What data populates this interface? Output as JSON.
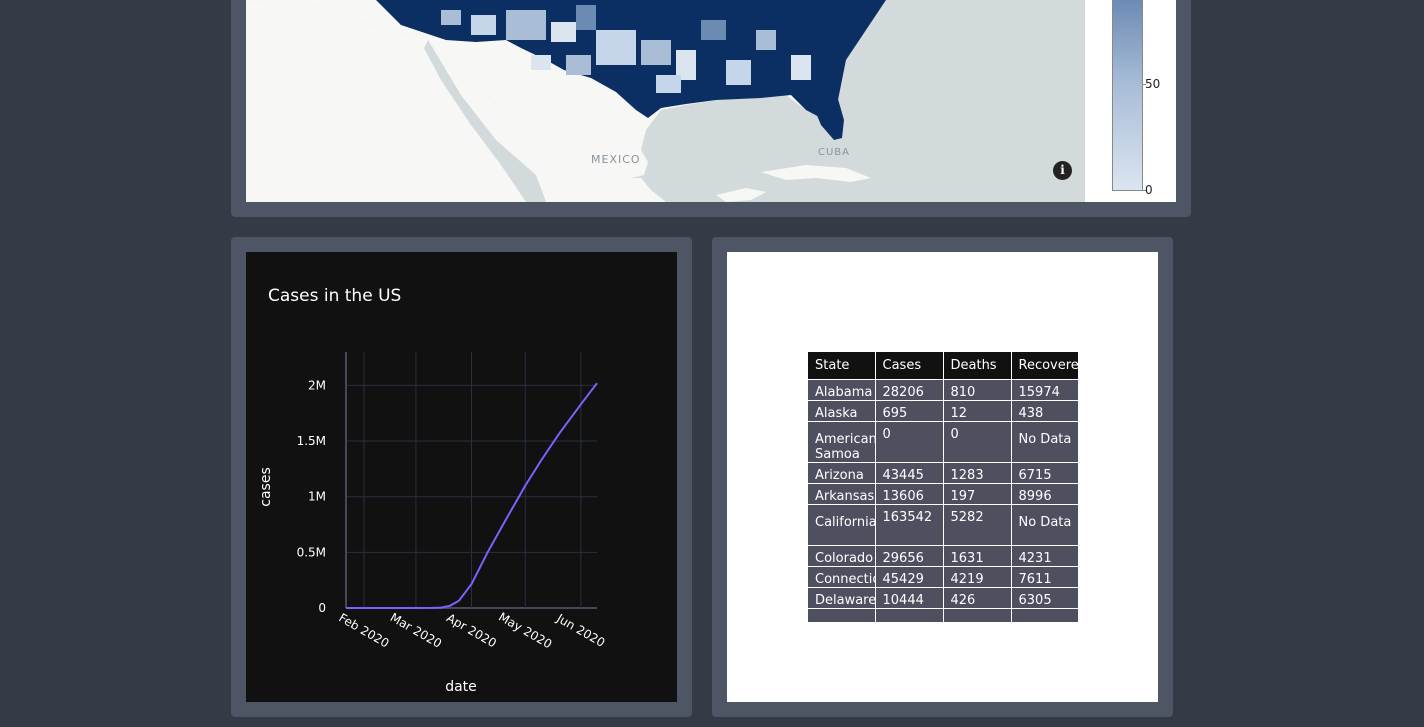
{
  "map": {
    "labels": {
      "mexico": "MEXICO",
      "cuba": "CUBA"
    },
    "info_icon": "info-icon",
    "colorbar": {
      "ticks": [
        "50",
        "0"
      ],
      "low_color": "#dbe5f0",
      "high_color": "#08306b"
    },
    "land_color": "#f7f7f5",
    "water_color": "#d3dadc"
  },
  "chart_data": {
    "type": "line",
    "title": "Cases in the US",
    "xlabel": "date",
    "ylabel": "cases",
    "x_ticks": [
      "Feb 2020",
      "Mar 2020",
      "Apr 2020",
      "May 2020",
      "Jun 2020"
    ],
    "y_ticks": [
      "0",
      "0.5M",
      "1M",
      "1.5M",
      "2M"
    ],
    "ylim": [
      0,
      2300000
    ],
    "grid": true,
    "line_color": "#7b61ff",
    "background": "#111111",
    "series": [
      {
        "x": [
          "2020-01-22",
          "2020-02-15",
          "2020-03-01",
          "2020-03-10",
          "2020-03-15",
          "2020-03-20",
          "2020-03-25",
          "2020-04-01",
          "2020-04-10",
          "2020-04-20",
          "2020-05-01",
          "2020-05-10",
          "2020-05-20",
          "2020-06-01",
          "2020-06-10"
        ],
        "y": [
          0,
          15,
          75,
          1000,
          3500,
          20000,
          66000,
          215000,
          500000,
          790000,
          1100000,
          1330000,
          1570000,
          1830000,
          2020000
        ]
      }
    ]
  },
  "table": {
    "columns": [
      "State",
      "Cases",
      "Deaths",
      "Recovered"
    ],
    "rows": [
      [
        "Alabama",
        "28206",
        "810",
        "15974"
      ],
      [
        "Alaska",
        "695",
        "12",
        "438"
      ],
      [
        "American Samoa",
        "0",
        "0",
        "No Data"
      ],
      [
        "Arizona",
        "43445",
        "1283",
        "6715"
      ],
      [
        "Arkansas",
        "13606",
        "197",
        "8996"
      ],
      [
        "California",
        "163542",
        "5282",
        "No Data"
      ],
      [
        "Colorado",
        "29656",
        "1631",
        "4231"
      ],
      [
        "Connecticut",
        "45429",
        "4219",
        "7611"
      ],
      [
        "Delaware",
        "10444",
        "426",
        "6305"
      ],
      [
        "",
        "",
        "",
        ""
      ]
    ]
  }
}
